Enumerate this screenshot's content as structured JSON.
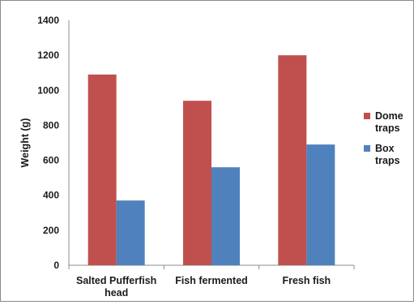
{
  "chart_data": {
    "type": "bar",
    "title": "",
    "xlabel": "",
    "ylabel": "Weight (g)",
    "ylim": [
      0,
      1400
    ],
    "yticks": [
      0,
      200,
      400,
      600,
      800,
      1000,
      1200,
      1400
    ],
    "grid": false,
    "legend_position": "right",
    "categories": [
      [
        "Salted Pufferfish",
        "head"
      ],
      [
        "Fish fermented"
      ],
      [
        "Fresh fish"
      ]
    ],
    "series": [
      {
        "name": [
          "Dome",
          "traps"
        ],
        "color": "#c0504d",
        "values": [
          1090,
          940,
          1200
        ]
      },
      {
        "name": [
          "Box",
          "traps"
        ],
        "color": "#4f81bd",
        "values": [
          370,
          560,
          690
        ]
      }
    ]
  }
}
